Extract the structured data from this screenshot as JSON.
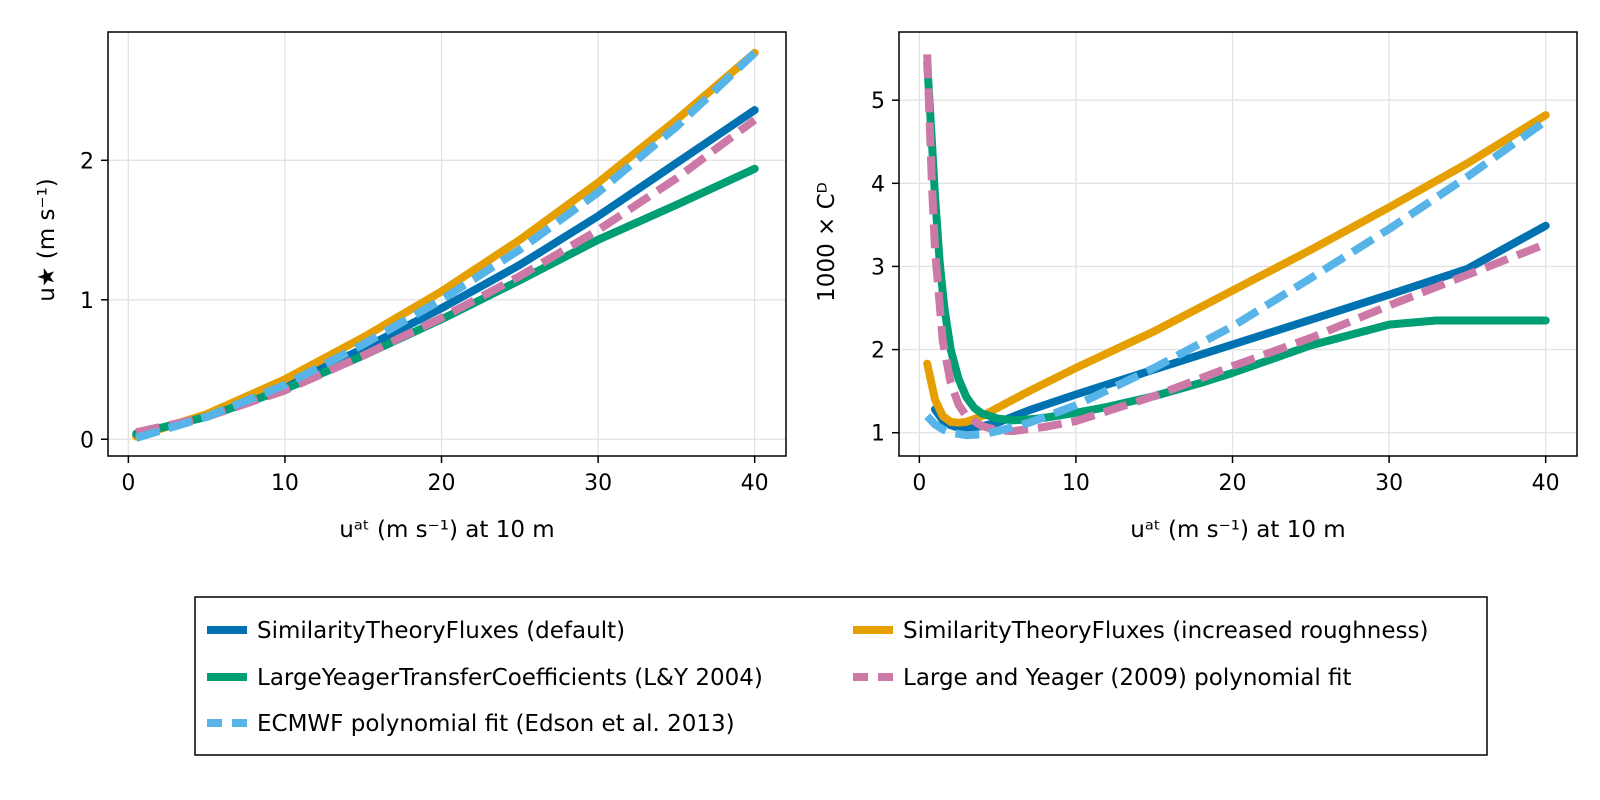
{
  "series_styles": [
    {
      "name": "SimilarityTheoryFluxes (default)",
      "color": "#0072B2",
      "dash": "solid"
    },
    {
      "name": "LargeYeagerTransferCoefficients (L&Y 2004)",
      "color": "#009E73",
      "dash": "solid"
    },
    {
      "name": "ECMWF polynomial fit (Edson et al. 2013)",
      "color": "#56B4E9",
      "dash": "dashed"
    },
    {
      "name": "SimilarityTheoryFluxes (increased roughness)",
      "color": "#E69F00",
      "dash": "solid"
    },
    {
      "name": "Large and Yeager (2009) polynomial fit",
      "color": "#CC79A7",
      "dash": "dashed"
    }
  ],
  "chart_data": [
    {
      "type": "line",
      "xlabel": "uᵃᵗ (m s⁻¹) at 10 m",
      "ylabel": "u★ (m s⁻¹)",
      "xlim": [
        -1.3,
        42
      ],
      "ylim": [
        -0.12,
        2.92
      ],
      "xticks": [
        0,
        10,
        20,
        30,
        40
      ],
      "yticks": [
        0,
        1,
        2
      ],
      "grid": true,
      "series": [
        {
          "name": "SimilarityTheoryFluxes (default)",
          "x": [
            0.5,
            5,
            10,
            15,
            20,
            25,
            30,
            35,
            40
          ],
          "y": [
            0.03,
            0.17,
            0.38,
            0.65,
            0.94,
            1.25,
            1.6,
            1.98,
            2.36
          ]
        },
        {
          "name": "SimilarityTheoryFluxes (increased roughness)",
          "x": [
            0.5,
            5,
            10,
            15,
            20,
            25,
            30,
            35,
            40
          ],
          "y": [
            0.02,
            0.18,
            0.43,
            0.73,
            1.06,
            1.43,
            1.84,
            2.29,
            2.77
          ]
        },
        {
          "name": "LargeYeagerTransferCoefficients (L&Y 2004)",
          "x": [
            0.5,
            5,
            10,
            15,
            20,
            25,
            30,
            35,
            40
          ],
          "y": [
            0.04,
            0.16,
            0.36,
            0.6,
            0.86,
            1.14,
            1.43,
            1.68,
            1.94
          ]
        },
        {
          "name": "Large and Yeager (2009) polynomial fit",
          "x": [
            0.5,
            5,
            10,
            15,
            20,
            25,
            30,
            35,
            40
          ],
          "y": [
            0.05,
            0.16,
            0.35,
            0.6,
            0.87,
            1.17,
            1.5,
            1.87,
            2.29
          ]
        },
        {
          "name": "ECMWF polynomial fit (Edson et al. 2013)",
          "x": [
            0.5,
            5,
            10,
            15,
            20,
            25,
            30,
            35,
            40
          ],
          "y": [
            0.01,
            0.16,
            0.39,
            0.68,
            1.0,
            1.36,
            1.77,
            2.24,
            2.77
          ]
        }
      ]
    },
    {
      "type": "line",
      "xlabel": "uᵃᵗ (m s⁻¹) at 10 m",
      "ylabel": "1000 × Cᴰ",
      "xlim": [
        -1.3,
        42
      ],
      "ylim": [
        0.72,
        5.82
      ],
      "xticks": [
        0,
        10,
        20,
        30,
        40
      ],
      "yticks": [
        1,
        2,
        3,
        4,
        5
      ],
      "grid": true,
      "series": [
        {
          "name": "SimilarityTheoryFluxes (default)",
          "x": [
            1,
            1.5,
            2,
            2.5,
            3,
            4,
            5,
            7,
            10,
            15,
            20,
            25,
            30,
            35,
            40
          ],
          "y": [
            1.28,
            1.15,
            1.09,
            1.06,
            1.06,
            1.08,
            1.12,
            1.27,
            1.46,
            1.76,
            2.06,
            2.36,
            2.66,
            2.97,
            3.49
          ]
        },
        {
          "name": "SimilarityTheoryFluxes (increased roughness)",
          "x": [
            0.5,
            1,
            1.5,
            2,
            2.5,
            3,
            4,
            5,
            7,
            10,
            15,
            20,
            25,
            30,
            35,
            40
          ],
          "y": [
            1.83,
            1.4,
            1.2,
            1.13,
            1.12,
            1.13,
            1.2,
            1.3,
            1.5,
            1.78,
            2.22,
            2.71,
            3.2,
            3.71,
            4.24,
            4.82
          ]
        },
        {
          "name": "LargeYeagerTransferCoefficients (L&Y 2004)",
          "x": [
            0.5,
            0.8,
            1,
            1.3,
            1.6,
            2,
            2.5,
            3,
            3.5,
            4,
            5,
            6,
            7,
            8,
            10,
            12,
            15,
            18,
            20,
            25,
            30,
            33,
            35,
            40
          ],
          "y": [
            5.45,
            4.5,
            3.85,
            3.05,
            2.5,
            2.0,
            1.65,
            1.43,
            1.3,
            1.23,
            1.17,
            1.15,
            1.16,
            1.18,
            1.24,
            1.31,
            1.44,
            1.6,
            1.72,
            2.05,
            2.3,
            2.35,
            2.35,
            2.35
          ]
        },
        {
          "name": "Large and Yeager (2009) polynomial fit",
          "x": [
            0.5,
            0.8,
            1,
            1.5,
            2,
            2.5,
            3,
            4,
            5,
            6,
            8,
            10,
            15,
            20,
            25,
            30,
            35,
            40
          ],
          "y": [
            5.55,
            4.0,
            3.2,
            2.1,
            1.6,
            1.34,
            1.2,
            1.08,
            1.03,
            1.02,
            1.07,
            1.14,
            1.44,
            1.8,
            2.14,
            2.53,
            2.9,
            3.27
          ]
        },
        {
          "name": "ECMWF polynomial fit (Edson et al. 2013)",
          "x": [
            0.5,
            1,
            1.5,
            2,
            3,
            4,
            5,
            7,
            10,
            15,
            20,
            25,
            30,
            35,
            40
          ],
          "y": [
            1.2,
            1.1,
            1.04,
            1.0,
            0.97,
            0.98,
            1.02,
            1.12,
            1.33,
            1.78,
            2.28,
            2.86,
            3.45,
            4.08,
            4.75
          ]
        }
      ]
    }
  ]
}
